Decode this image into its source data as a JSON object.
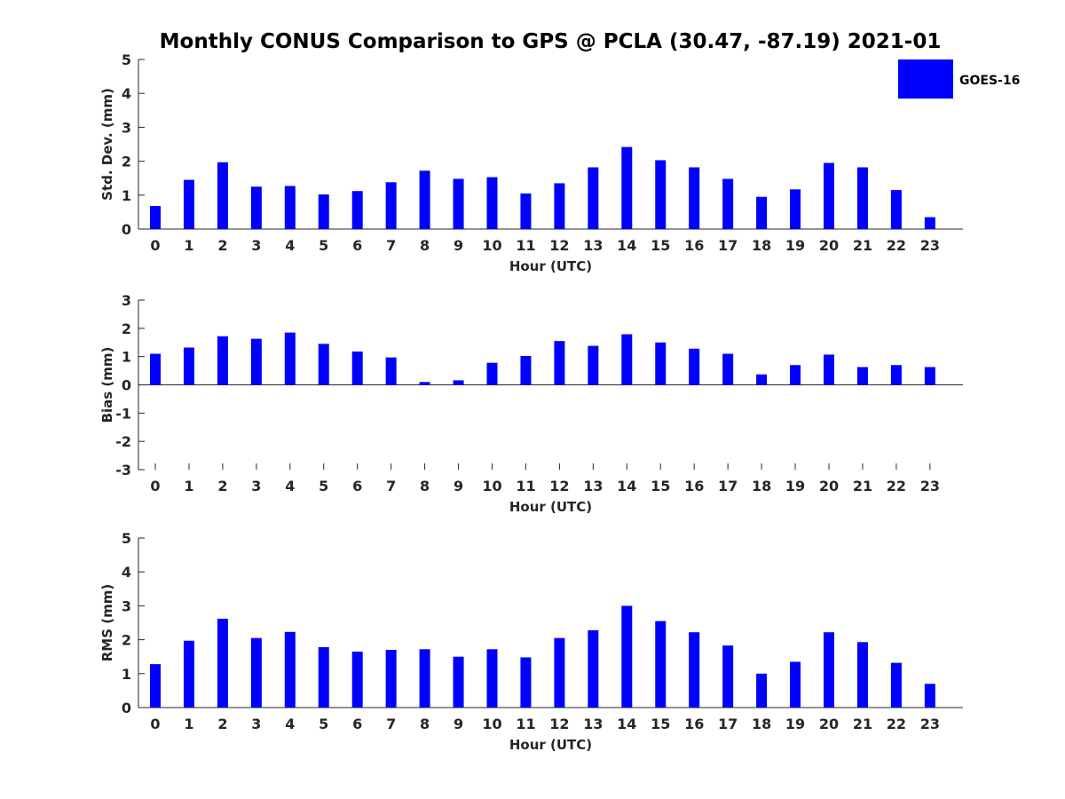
{
  "title": "Monthly CONUS Comparison to GPS @ PCLA (30.47, -87.19) 2021-01",
  "colors": {
    "bar": "#0000ff",
    "axis": "#262626"
  },
  "legend": {
    "label": "GOES-16",
    "placement": "top-right"
  },
  "chart_data": [
    {
      "type": "bar",
      "xlabel": "Hour (UTC)",
      "ylabel": "Std. Dev. (mm)",
      "ylim": [
        0,
        5
      ],
      "yticks": [
        0,
        1,
        2,
        3,
        4,
        5
      ],
      "categories": [
        0,
        1,
        2,
        3,
        4,
        5,
        6,
        7,
        8,
        9,
        10,
        11,
        12,
        13,
        14,
        15,
        16,
        17,
        18,
        19,
        20,
        21,
        22,
        23
      ],
      "series": [
        {
          "name": "GOES-16",
          "values": [
            0.68,
            1.45,
            1.97,
            1.25,
            1.27,
            1.02,
            1.12,
            1.38,
            1.72,
            1.48,
            1.53,
            1.05,
            1.35,
            1.82,
            2.42,
            2.03,
            1.82,
            1.48,
            0.95,
            1.17,
            1.95,
            1.82,
            1.15,
            0.35
          ]
        }
      ]
    },
    {
      "type": "bar",
      "xlabel": "Hour (UTC)",
      "ylabel": "Bias (mm)",
      "ylim": [
        -3,
        3
      ],
      "yticks": [
        -3,
        -2,
        -1,
        0,
        1,
        2,
        3
      ],
      "categories": [
        0,
        1,
        2,
        3,
        4,
        5,
        6,
        7,
        8,
        9,
        10,
        11,
        12,
        13,
        14,
        15,
        16,
        17,
        18,
        19,
        20,
        21,
        22,
        23
      ],
      "series": [
        {
          "name": "GOES-16",
          "values": [
            1.1,
            1.32,
            1.72,
            1.63,
            1.85,
            1.45,
            1.18,
            0.97,
            0.1,
            0.16,
            0.78,
            1.02,
            1.55,
            1.38,
            1.79,
            1.5,
            1.28,
            1.1,
            0.37,
            0.7,
            1.07,
            0.63,
            0.7,
            0.63
          ]
        }
      ]
    },
    {
      "type": "bar",
      "xlabel": "Hour (UTC)",
      "ylabel": "RMS (mm)",
      "ylim": [
        0,
        5
      ],
      "yticks": [
        0,
        1,
        2,
        3,
        4,
        5
      ],
      "categories": [
        0,
        1,
        2,
        3,
        4,
        5,
        6,
        7,
        8,
        9,
        10,
        11,
        12,
        13,
        14,
        15,
        16,
        17,
        18,
        19,
        20,
        21,
        22,
        23
      ],
      "series": [
        {
          "name": "GOES-16",
          "values": [
            1.28,
            1.97,
            2.62,
            2.05,
            2.23,
            1.78,
            1.65,
            1.7,
            1.72,
            1.5,
            1.72,
            1.48,
            2.05,
            2.28,
            3.0,
            2.55,
            2.22,
            1.83,
            1.0,
            1.35,
            2.22,
            1.93,
            1.32,
            0.7
          ]
        }
      ]
    }
  ]
}
